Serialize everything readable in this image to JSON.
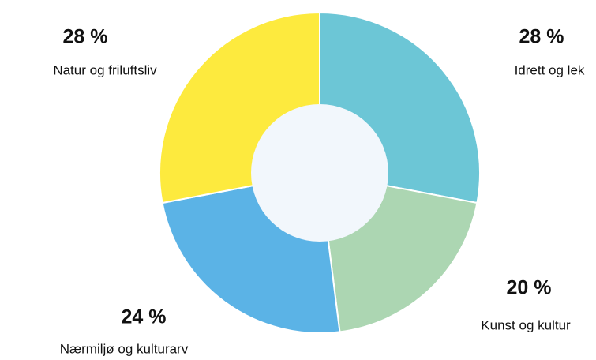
{
  "chart_data": {
    "type": "donut",
    "categories": [
      "Idrett og lek",
      "Kunst og kultur",
      "Nærmiljø og kulturarv",
      "Natur og friluftsliv"
    ],
    "values": [
      28,
      20,
      24,
      28
    ],
    "value_labels": [
      "28 %",
      "20 %",
      "24 %",
      "28 %"
    ],
    "colors": [
      "#6cc6d6",
      "#acd6b2",
      "#5bb3e6",
      "#fdea3e"
    ]
  }
}
